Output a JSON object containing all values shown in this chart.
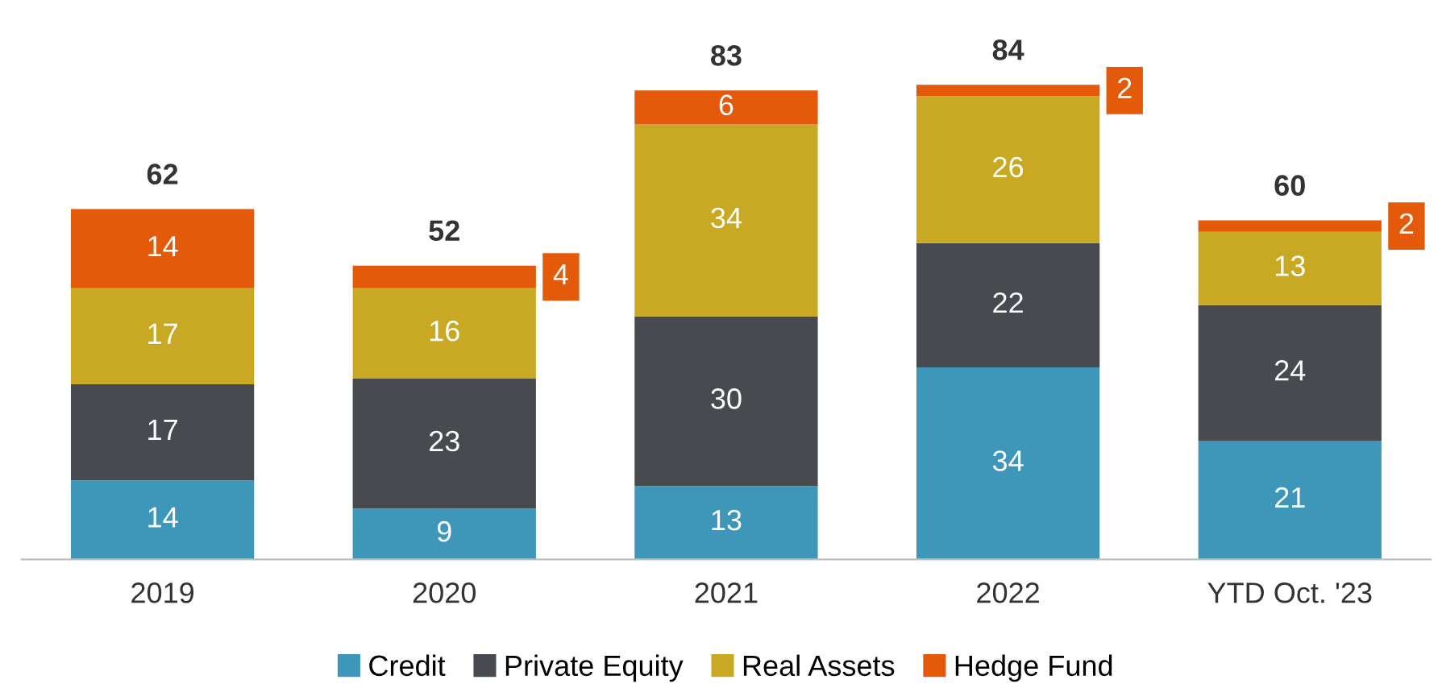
{
  "chart_data": {
    "type": "bar",
    "stacked": true,
    "data_labels": true,
    "legend": "bottom",
    "grid": false,
    "categories": [
      "2019",
      "2020",
      "2021",
      "2022",
      "YTD Oct. '23"
    ],
    "series": [
      {
        "name": "Credit",
        "color": "#3e97b8",
        "values": [
          14,
          9,
          13,
          34,
          21
        ]
      },
      {
        "name": "Private Equity",
        "color": "#474b50",
        "values": [
          17,
          23,
          30,
          22,
          24
        ]
      },
      {
        "name": "Real Assets",
        "color": "#c9a923",
        "values": [
          17,
          16,
          34,
          26,
          13
        ]
      },
      {
        "name": "Hedge Fund",
        "color": "#e35a0a",
        "values": [
          14,
          4,
          6,
          2,
          2
        ]
      }
    ],
    "totals": [
      "62",
      "52",
      "83",
      "84",
      "60"
    ]
  }
}
